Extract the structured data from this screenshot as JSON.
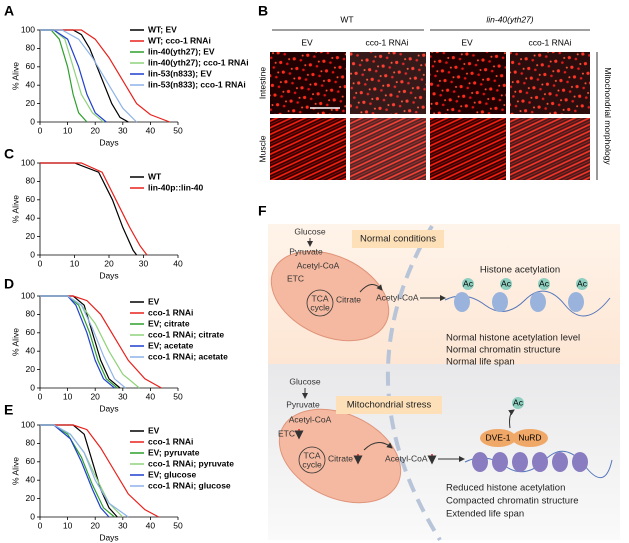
{
  "panel_labels": [
    "A",
    "B",
    "C",
    "D",
    "E",
    "F"
  ],
  "chart_data": [
    {
      "type": "line",
      "x_label": "Days",
      "y_label": "% Alive",
      "xlim": [
        0,
        50
      ],
      "xticks": [
        0,
        10,
        20,
        30,
        40,
        50
      ],
      "ylim": [
        0,
        100
      ],
      "yticks": [
        0,
        20,
        40,
        60,
        80,
        100
      ],
      "series": [
        {
          "name": "WT; EV",
          "color": "#000000",
          "x": [
            0,
            12,
            15,
            18,
            22,
            26,
            29,
            32
          ],
          "values": [
            100,
            100,
            95,
            80,
            50,
            20,
            5,
            0
          ]
        },
        {
          "name": "WT; cco-1 RNAi",
          "color": "#e8211c",
          "x": [
            0,
            15,
            20,
            25,
            30,
            35,
            40,
            47
          ],
          "values": [
            100,
            100,
            90,
            70,
            45,
            20,
            8,
            0
          ]
        },
        {
          "name": "lin-40(yth27); EV",
          "color": "#2ca02c",
          "x": [
            0,
            4,
            7,
            10,
            12,
            14,
            17
          ],
          "values": [
            100,
            100,
            90,
            60,
            30,
            10,
            0
          ]
        },
        {
          "name": "lin-40(yth27); cco-1 RNAi",
          "color": "#8fd27a",
          "x": [
            0,
            5,
            9,
            12,
            15,
            19,
            23
          ],
          "values": [
            100,
            100,
            90,
            60,
            30,
            10,
            0
          ]
        },
        {
          "name": "lin-53(n833); EV",
          "color": "#1f3fcf",
          "x": [
            0,
            5,
            10,
            14,
            17,
            20,
            24
          ],
          "values": [
            100,
            100,
            90,
            60,
            30,
            10,
            0
          ]
        },
        {
          "name": "lin-53(n833); cco-1 RNAi",
          "color": "#8fb3e8",
          "x": [
            0,
            8,
            14,
            19,
            25,
            30,
            35
          ],
          "values": [
            100,
            100,
            90,
            70,
            40,
            15,
            0
          ]
        }
      ]
    },
    {
      "type": "line",
      "x_label": "Days",
      "y_label": "% Alive",
      "xlim": [
        0,
        40
      ],
      "xticks": [
        0,
        10,
        20,
        30,
        40
      ],
      "ylim": [
        0,
        100
      ],
      "yticks": [
        0,
        20,
        40,
        60,
        80,
        100
      ],
      "series": [
        {
          "name": "WT",
          "color": "#000000",
          "x": [
            0,
            10,
            17,
            21,
            24,
            27,
            28
          ],
          "values": [
            100,
            100,
            90,
            60,
            30,
            5,
            0
          ]
        },
        {
          "name": "lin-40p::lin-40",
          "color": "#e8211c",
          "x": [
            0,
            12,
            18,
            22,
            26,
            29,
            31
          ],
          "values": [
            100,
            100,
            90,
            60,
            30,
            10,
            0
          ]
        }
      ]
    },
    {
      "type": "line",
      "x_label": "Days",
      "y_label": "% Alive",
      "xlim": [
        0,
        50
      ],
      "xticks": [
        0,
        10,
        20,
        30,
        40,
        50
      ],
      "ylim": [
        0,
        100
      ],
      "yticks": [
        0,
        20,
        40,
        60,
        80,
        100
      ],
      "series": [
        {
          "name": "EV",
          "color": "#000000",
          "x": [
            0,
            12,
            16,
            19,
            22,
            25,
            29
          ],
          "values": [
            100,
            100,
            90,
            60,
            30,
            10,
            0
          ]
        },
        {
          "name": "cco-1 RNAi",
          "color": "#e8211c",
          "x": [
            0,
            12,
            17,
            22,
            27,
            32,
            38,
            44
          ],
          "values": [
            100,
            100,
            95,
            80,
            55,
            30,
            10,
            0
          ]
        },
        {
          "name": "EV; citrate",
          "color": "#2ca02c",
          "x": [
            0,
            10,
            14,
            18,
            21,
            24,
            28
          ],
          "values": [
            100,
            100,
            90,
            60,
            30,
            10,
            0
          ]
        },
        {
          "name": "cco-1 RNAi; citrate",
          "color": "#8fd27a",
          "x": [
            0,
            10,
            15,
            20,
            25,
            30,
            36
          ],
          "values": [
            100,
            100,
            90,
            70,
            40,
            15,
            0
          ]
        },
        {
          "name": "EV; acetate",
          "color": "#1f3fcf",
          "x": [
            0,
            10,
            13,
            17,
            20,
            23,
            27
          ],
          "values": [
            100,
            100,
            90,
            60,
            30,
            10,
            0
          ]
        },
        {
          "name": "cco-1 RNAi; acetate",
          "color": "#8fb3e8",
          "x": [
            0,
            10,
            15,
            19,
            23,
            27,
            31
          ],
          "values": [
            100,
            100,
            90,
            65,
            35,
            10,
            0
          ]
        }
      ]
    },
    {
      "type": "line",
      "x_label": "Days",
      "y_label": "% Alive",
      "xlim": [
        0,
        50
      ],
      "xticks": [
        0,
        10,
        20,
        30,
        40,
        50
      ],
      "ylim": [
        0,
        100
      ],
      "yticks": [
        0,
        20,
        40,
        60,
        80,
        100
      ],
      "series": [
        {
          "name": "EV",
          "color": "#000000",
          "x": [
            0,
            12,
            16,
            19,
            22,
            25,
            28
          ],
          "values": [
            100,
            100,
            90,
            60,
            30,
            10,
            0
          ]
        },
        {
          "name": "cco-1 RNAi",
          "color": "#e8211c",
          "x": [
            0,
            12,
            17,
            22,
            27,
            32,
            38,
            43
          ],
          "values": [
            100,
            100,
            95,
            75,
            50,
            25,
            8,
            0
          ]
        },
        {
          "name": "EV; pyruvate",
          "color": "#2ca02c",
          "x": [
            0,
            5,
            10,
            15,
            19,
            23,
            27
          ],
          "values": [
            100,
            100,
            90,
            65,
            35,
            10,
            0
          ]
        },
        {
          "name": "cco-1 RNAi; pyruvate",
          "color": "#8fd27a",
          "x": [
            0,
            5,
            11,
            16,
            20,
            25,
            30
          ],
          "values": [
            100,
            100,
            90,
            70,
            45,
            15,
            0
          ]
        },
        {
          "name": "EV; glucose",
          "color": "#1f3fcf",
          "x": [
            0,
            5,
            11,
            15,
            19,
            22,
            25
          ],
          "values": [
            100,
            100,
            85,
            60,
            30,
            10,
            0
          ]
        },
        {
          "name": "cco-1 RNAi; glucose",
          "color": "#8fb3e8",
          "x": [
            0,
            5,
            11,
            16,
            20,
            25,
            32
          ],
          "values": [
            100,
            100,
            90,
            70,
            40,
            15,
            0
          ]
        }
      ]
    }
  ],
  "panel_b": {
    "groups": [
      "WT",
      "lin-40(yth27)"
    ],
    "columns": [
      "EV",
      "cco-1 RNAi",
      "EV",
      "cco-1 RNAi"
    ],
    "rows": [
      "Intestine",
      "Muscle"
    ],
    "side_label": "Mitochondrial morphology"
  },
  "panel_f": {
    "ac": "Ac",
    "normal": {
      "condition": "Normal conditions",
      "glucose": "Glucose",
      "pyruvate": "Pyruvate",
      "acetyl_coa_mito": "Acetyl-CoA",
      "etc": "ETC",
      "tca": "TCA",
      "cycle": "cycle",
      "citrate": "Citrate",
      "acetyl_coa": "Acetyl-CoA",
      "histone_acetylation": "Histone acetylation",
      "outcomes": [
        "Normal histone acetylation level",
        "Normal chromatin structure",
        "Normal life span"
      ]
    },
    "stress": {
      "condition": "Mitochondrial stress",
      "glucose": "Glucose",
      "pyruvate": "Pyruvate",
      "acetyl_coa_mito": "Acetyl-CoA",
      "etc": "ETC",
      "tca": "TCA",
      "cycle": "cycle",
      "citrate": "Citrate",
      "acetyl_coa": "Acetyl-CoA",
      "dve1": "DVE-1",
      "nurd": "NuRD",
      "outcomes": [
        "Reduced histone acetylation",
        "Compacted chromatin structure",
        "Extended life span"
      ]
    }
  }
}
